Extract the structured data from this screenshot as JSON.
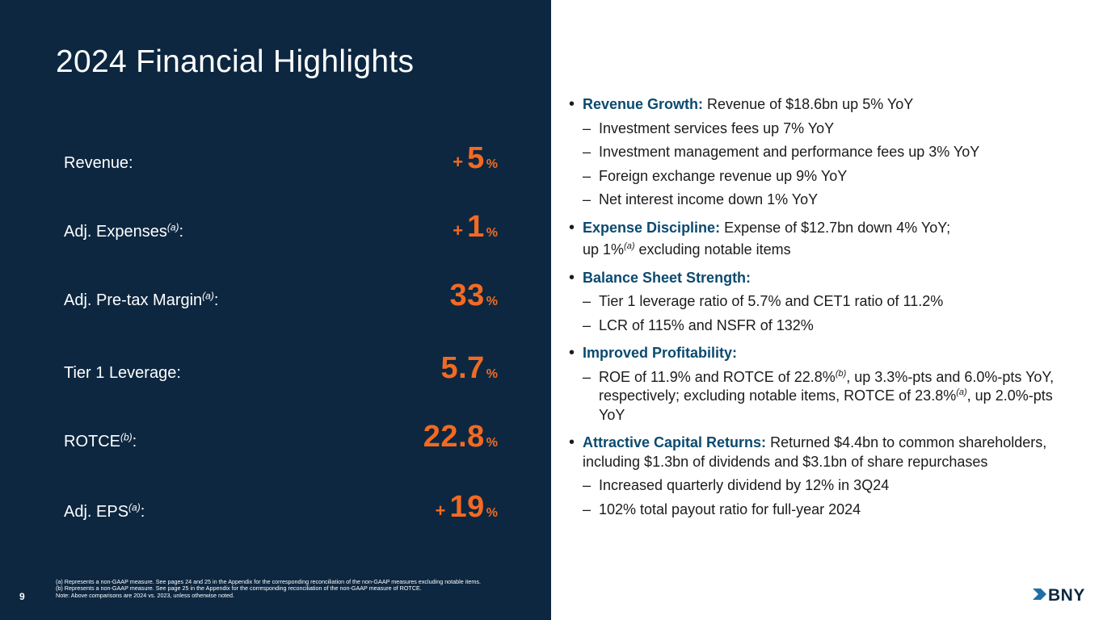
{
  "title": "2024 Financial Highlights",
  "page_number": "9",
  "metrics": [
    {
      "label": "Revenue:",
      "sup": "",
      "prefix": "+",
      "value": "5",
      "unit": "%"
    },
    {
      "label": "Adj. Expenses",
      "sup": "(a)",
      "suffix": ":",
      "prefix": "+",
      "value": "1",
      "unit": "%"
    },
    {
      "label": "Adj. Pre-tax Margin",
      "sup": "(a)",
      "suffix": ":",
      "prefix": "",
      "value": "33",
      "unit": "%"
    },
    {
      "label": "Tier 1 Leverage:",
      "sup": "",
      "prefix": "",
      "value": "5.7",
      "unit": "%"
    },
    {
      "label": "ROTCE",
      "sup": "(b)",
      "suffix": ":",
      "prefix": "",
      "value": "22.8",
      "unit": "%"
    },
    {
      "label": "Adj. EPS",
      "sup": "(a)",
      "suffix": ":",
      "prefix": "+",
      "value": "19",
      "unit": "%"
    }
  ],
  "highlights": {
    "revenue": {
      "heading": "Revenue Growth:",
      "text": " Revenue of $18.6bn up 5% YoY",
      "subs": [
        "Investment services fees up 7% YoY",
        "Investment management and performance fees up 3% YoY",
        "Foreign exchange revenue up 9% YoY",
        "Net interest income down 1% YoY"
      ]
    },
    "expense": {
      "heading": "Expense Discipline:",
      "text": " Expense of $12.7bn down 4% YoY;",
      "cont_a": "up 1%",
      "cont_sup": "(a)",
      "cont_b": " excluding notable items"
    },
    "balance": {
      "heading": "Balance Sheet Strength:",
      "subs": [
        "Tier 1 leverage ratio of 5.7% and CET1 ratio of 11.2%",
        "LCR of 115% and NSFR of 132%"
      ]
    },
    "profit": {
      "heading": "Improved Profitability:",
      "sub_a": "ROE of 11.9% and ROTCE of 22.8%",
      "sub_sup1": "(b)",
      "sub_b": ", up 3.3%-pts and 6.0%-pts YoY, respectively; excluding notable items, ROTCE of 23.8%",
      "sub_sup2": "(a)",
      "sub_c": ", up 2.0%-pts YoY"
    },
    "capital": {
      "heading": "Attractive Capital Returns:",
      "text": " Returned $4.4bn to common shareholders, including $1.3bn of dividends and $3.1bn of share repurchases",
      "subs": [
        "Increased quarterly dividend by 12% in 3Q24",
        "102% total payout ratio for full-year 2024"
      ]
    }
  },
  "footnotes": [
    "(a) Represents a non-GAAP measure. See pages 24 and 25 in the Appendix for the corresponding reconciliation of the non-GAAP measures excluding notable items.",
    "(b) Represents a non-GAAP measure. See page 25 in the Appendix for the corresponding reconciliation of the non-GAAP measure of ROTCE.",
    "Note: Above comparisons are 2024 vs. 2023, unless otherwise noted."
  ],
  "logo": {
    "text": "BNY",
    "color": "#0d2740",
    "accent": "#1f6fa6",
    "icon": "bny-arrow-icon"
  },
  "colors": {
    "panel": "#0d2740",
    "metric_value": "#f26a22",
    "heading": "#0b4a6f"
  }
}
